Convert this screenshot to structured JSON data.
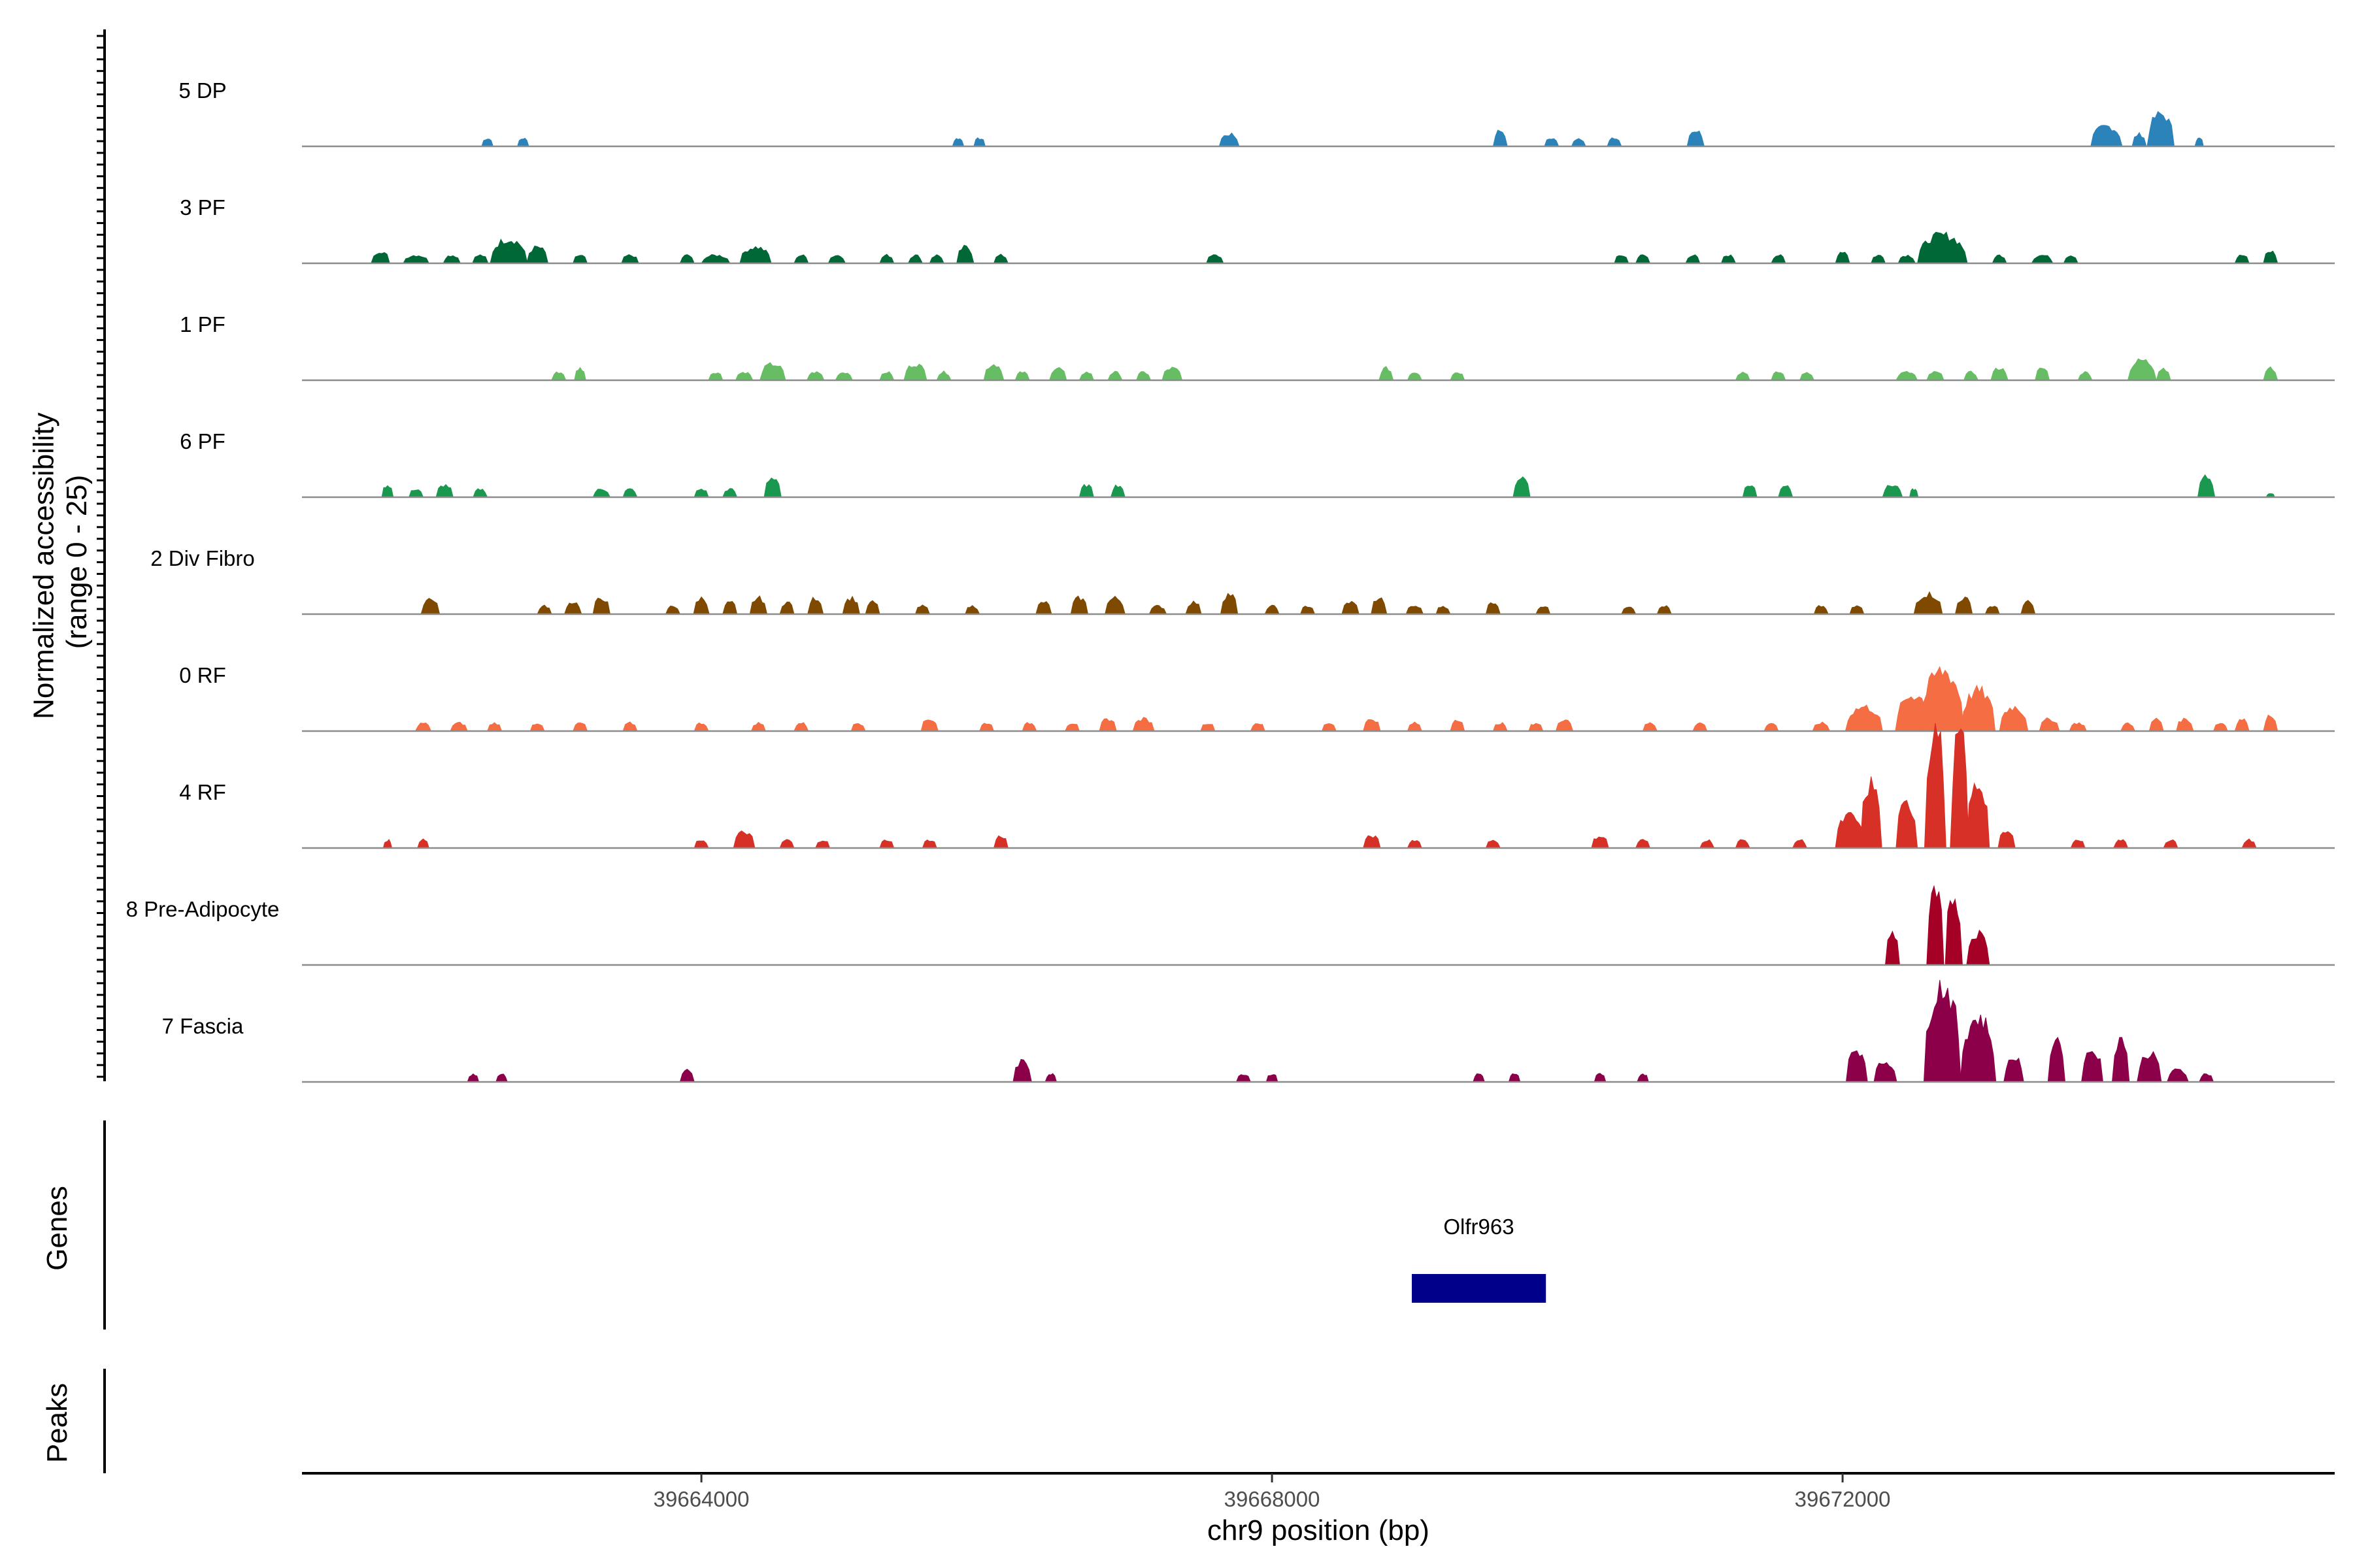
{
  "chart_data": {
    "type": "area",
    "subtype": "genome-coverage-tracks",
    "y_axis": {
      "title_line1": "Normalized accessibility",
      "title_line2": "(range 0 - 25)",
      "range": [
        0,
        25
      ]
    },
    "x_axis": {
      "title": "chr9 position (bp)",
      "range": [
        39661200,
        39675450
      ],
      "ticks": [
        39664000,
        39668000,
        39672000
      ],
      "tick_labels": [
        "39664000",
        "39668000",
        "39672000"
      ]
    },
    "panel_titles": {
      "genes": "Genes",
      "peaks": "Peaks"
    },
    "genes": [
      {
        "name": "Olfr963",
        "start": 39668980,
        "end": 39669920,
        "color": "#00008b"
      }
    ],
    "tracks": [
      {
        "name": "5 DP",
        "color": "#2b83ba",
        "peaks": [
          [
            39662500,
            80,
            2
          ],
          [
            39662750,
            80,
            2
          ],
          [
            39665800,
            80,
            2
          ],
          [
            39665950,
            80,
            2
          ],
          [
            39667700,
            140,
            3
          ],
          [
            39669600,
            100,
            4
          ],
          [
            39669960,
            100,
            2
          ],
          [
            39670150,
            100,
            2
          ],
          [
            39670400,
            100,
            2
          ],
          [
            39670970,
            120,
            4
          ],
          [
            39673850,
            220,
            5
          ],
          [
            39674080,
            100,
            3
          ],
          [
            39674230,
            190,
            8
          ],
          [
            39674500,
            60,
            2
          ]
        ]
      },
      {
        "name": "3 PF",
        "color": "#006837",
        "peaks": [
          [
            39661750,
            130,
            3
          ],
          [
            39662000,
            180,
            2
          ],
          [
            39662250,
            120,
            2
          ],
          [
            39662450,
            110,
            2
          ],
          [
            39662650,
            260,
            6
          ],
          [
            39662850,
            150,
            4
          ],
          [
            39663150,
            100,
            2
          ],
          [
            39663500,
            120,
            2
          ],
          [
            39663900,
            100,
            2
          ],
          [
            39664100,
            200,
            2
          ],
          [
            39664380,
            220,
            4
          ],
          [
            39664700,
            100,
            2
          ],
          [
            39664950,
            120,
            2
          ],
          [
            39665300,
            100,
            2
          ],
          [
            39665500,
            100,
            2
          ],
          [
            39665650,
            100,
            2
          ],
          [
            39665850,
            120,
            4
          ],
          [
            39666100,
            100,
            2
          ],
          [
            39667600,
            120,
            2
          ],
          [
            39670450,
            100,
            2
          ],
          [
            39670600,
            100,
            2
          ],
          [
            39670950,
            100,
            2
          ],
          [
            39671200,
            100,
            2
          ],
          [
            39671550,
            100,
            2
          ],
          [
            39672000,
            100,
            3
          ],
          [
            39672250,
            100,
            2
          ],
          [
            39672450,
            120,
            2
          ],
          [
            39672700,
            350,
            7
          ],
          [
            39673100,
            100,
            2
          ],
          [
            39673400,
            150,
            2
          ],
          [
            39673600,
            100,
            2
          ],
          [
            39674800,
            100,
            2
          ],
          [
            39675000,
            100,
            3
          ]
        ]
      },
      {
        "name": "1 PF",
        "color": "#66bd63",
        "peaks": [
          [
            39663000,
            100,
            2
          ],
          [
            39663150,
            80,
            3
          ],
          [
            39664100,
            100,
            2
          ],
          [
            39664300,
            120,
            2
          ],
          [
            39664500,
            180,
            4
          ],
          [
            39664800,
            120,
            2
          ],
          [
            39665000,
            120,
            2
          ],
          [
            39665300,
            100,
            2
          ],
          [
            39665500,
            160,
            4
          ],
          [
            39665700,
            100,
            2
          ],
          [
            39666050,
            140,
            4
          ],
          [
            39666250,
            100,
            2
          ],
          [
            39666500,
            120,
            3
          ],
          [
            39666700,
            100,
            2
          ],
          [
            39666900,
            100,
            2
          ],
          [
            39667100,
            100,
            2
          ],
          [
            39667300,
            140,
            3
          ],
          [
            39668800,
            100,
            3
          ],
          [
            39669000,
            100,
            2
          ],
          [
            39669300,
            100,
            2
          ],
          [
            39671300,
            100,
            2
          ],
          [
            39671550,
            100,
            2
          ],
          [
            39671750,
            100,
            2
          ],
          [
            39672450,
            150,
            2
          ],
          [
            39672650,
            120,
            2
          ],
          [
            39672900,
            100,
            2
          ],
          [
            39673100,
            120,
            3
          ],
          [
            39673400,
            100,
            3
          ],
          [
            39673700,
            100,
            2
          ],
          [
            39674100,
            200,
            5
          ],
          [
            39674250,
            100,
            3
          ],
          [
            39675000,
            100,
            3
          ]
        ]
      },
      {
        "name": "6 PF",
        "color": "#1a9850",
        "peaks": [
          [
            39661800,
            80,
            3
          ],
          [
            39662000,
            100,
            2
          ],
          [
            39662200,
            120,
            3
          ],
          [
            39662450,
            100,
            2
          ],
          [
            39663300,
            120,
            2
          ],
          [
            39663500,
            100,
            2
          ],
          [
            39664000,
            100,
            2
          ],
          [
            39664200,
            100,
            2
          ],
          [
            39664500,
            120,
            5
          ],
          [
            39666700,
            100,
            3
          ],
          [
            39666920,
            100,
            3
          ],
          [
            39669750,
            120,
            5
          ],
          [
            39671350,
            100,
            3
          ],
          [
            39671600,
            100,
            3
          ],
          [
            39672350,
            140,
            3
          ],
          [
            39672500,
            60,
            2
          ],
          [
            39674550,
            120,
            5
          ],
          [
            39675000,
            60,
            1
          ]
        ]
      },
      {
        "name": "2 Div Fibro",
        "color": "#7f4900",
        "peaks": [
          [
            39662100,
            130,
            4
          ],
          [
            39662900,
            100,
            2
          ],
          [
            39663100,
            120,
            3
          ],
          [
            39663300,
            120,
            4
          ],
          [
            39663800,
            100,
            2
          ],
          [
            39664000,
            110,
            4
          ],
          [
            39664200,
            100,
            3
          ],
          [
            39664400,
            120,
            4
          ],
          [
            39664600,
            100,
            3
          ],
          [
            39664800,
            110,
            4
          ],
          [
            39665050,
            120,
            4
          ],
          [
            39665200,
            100,
            3
          ],
          [
            39665550,
            100,
            2
          ],
          [
            39665900,
            100,
            2
          ],
          [
            39666400,
            110,
            3
          ],
          [
            39666650,
            120,
            4
          ],
          [
            39666900,
            140,
            4
          ],
          [
            39667200,
            120,
            2
          ],
          [
            39667450,
            110,
            3
          ],
          [
            39667700,
            120,
            5
          ],
          [
            39668000,
            100,
            2
          ],
          [
            39668250,
            100,
            2
          ],
          [
            39668550,
            120,
            3
          ],
          [
            39668750,
            110,
            4
          ],
          [
            39669000,
            120,
            2
          ],
          [
            39669200,
            100,
            2
          ],
          [
            39669550,
            100,
            3
          ],
          [
            39669900,
            100,
            2
          ],
          [
            39670500,
            100,
            2
          ],
          [
            39670750,
            100,
            2
          ],
          [
            39671850,
            100,
            2
          ],
          [
            39672100,
            100,
            2
          ],
          [
            39672600,
            200,
            5
          ],
          [
            39672850,
            120,
            4
          ],
          [
            39673050,
            100,
            2
          ],
          [
            39673300,
            100,
            3
          ]
        ]
      },
      {
        "name": "0 RF",
        "color": "#f46d43",
        "peaks": [
          [
            39662050,
            110,
            2
          ],
          [
            39662300,
            120,
            2
          ],
          [
            39662550,
            100,
            2
          ],
          [
            39662850,
            100,
            2
          ],
          [
            39663150,
            100,
            2
          ],
          [
            39663500,
            100,
            2
          ],
          [
            39664000,
            100,
            2
          ],
          [
            39664400,
            100,
            2
          ],
          [
            39664700,
            100,
            2
          ],
          [
            39665100,
            100,
            2
          ],
          [
            39665600,
            120,
            3
          ],
          [
            39666000,
            100,
            2
          ],
          [
            39666300,
            100,
            2
          ],
          [
            39666600,
            100,
            2
          ],
          [
            39666850,
            120,
            3
          ],
          [
            39667100,
            150,
            3
          ],
          [
            39667550,
            100,
            2
          ],
          [
            39667900,
            100,
            2
          ],
          [
            39668400,
            100,
            2
          ],
          [
            39668700,
            120,
            3
          ],
          [
            39669000,
            100,
            2
          ],
          [
            39669300,
            100,
            3
          ],
          [
            39669600,
            100,
            2
          ],
          [
            39669850,
            100,
            2
          ],
          [
            39670050,
            120,
            3
          ],
          [
            39670650,
            100,
            2
          ],
          [
            39671000,
            100,
            2
          ],
          [
            39671500,
            100,
            2
          ],
          [
            39671850,
            120,
            2
          ],
          [
            39672150,
            260,
            6
          ],
          [
            39672500,
            260,
            9
          ],
          [
            39672700,
            300,
            15
          ],
          [
            39672950,
            240,
            10
          ],
          [
            39673200,
            200,
            6
          ],
          [
            39673450,
            140,
            3
          ],
          [
            39673650,
            120,
            2
          ],
          [
            39674000,
            100,
            2
          ],
          [
            39674200,
            100,
            3
          ],
          [
            39674400,
            120,
            3
          ],
          [
            39674650,
            100,
            2
          ],
          [
            39674800,
            100,
            3
          ],
          [
            39675000,
            100,
            4
          ]
        ]
      },
      {
        "name": "4 RF",
        "color": "#d73027",
        "peaks": [
          [
            39661800,
            60,
            2
          ],
          [
            39662050,
            80,
            2
          ],
          [
            39664000,
            100,
            2
          ],
          [
            39664300,
            150,
            4
          ],
          [
            39664600,
            100,
            2
          ],
          [
            39664850,
            100,
            2
          ],
          [
            39665300,
            100,
            2
          ],
          [
            39665600,
            100,
            2
          ],
          [
            39666100,
            100,
            3
          ],
          [
            39668700,
            120,
            3
          ],
          [
            39669000,
            100,
            2
          ],
          [
            39669550,
            100,
            2
          ],
          [
            39670300,
            120,
            3
          ],
          [
            39670600,
            100,
            2
          ],
          [
            39671050,
            100,
            2
          ],
          [
            39671300,
            100,
            2
          ],
          [
            39671700,
            100,
            2
          ],
          [
            39672050,
            200,
            8
          ],
          [
            39672200,
            150,
            16
          ],
          [
            39672450,
            150,
            11
          ],
          [
            39672650,
            150,
            30
          ],
          [
            39672820,
            130,
            28
          ],
          [
            39672950,
            160,
            16
          ],
          [
            39673150,
            120,
            4
          ],
          [
            39673650,
            100,
            2
          ],
          [
            39673950,
            100,
            2
          ],
          [
            39674300,
            100,
            2
          ],
          [
            39674850,
            100,
            2
          ]
        ]
      },
      {
        "name": "8 Pre-Adipocyte",
        "color": "#a50026",
        "peaks": [
          [
            39672350,
            100,
            8
          ],
          [
            39672650,
            120,
            18
          ],
          [
            39672780,
            120,
            17
          ],
          [
            39672950,
            160,
            8
          ]
        ]
      },
      {
        "name": "7 Fascia",
        "color": "#8b0049",
        "peaks": [
          [
            39662400,
            80,
            2
          ],
          [
            39662600,
            80,
            2
          ],
          [
            39663900,
            100,
            3
          ],
          [
            39666250,
            130,
            5
          ],
          [
            39666450,
            80,
            2
          ],
          [
            39667800,
            100,
            2
          ],
          [
            39668000,
            80,
            2
          ],
          [
            39669450,
            80,
            2
          ],
          [
            39669700,
            80,
            2
          ],
          [
            39670300,
            80,
            2
          ],
          [
            39670600,
            80,
            2
          ],
          [
            39672100,
            150,
            8
          ],
          [
            39672300,
            160,
            5
          ],
          [
            39672700,
            260,
            24
          ],
          [
            39672950,
            250,
            16
          ],
          [
            39673200,
            140,
            6
          ],
          [
            39673500,
            120,
            11
          ],
          [
            39673750,
            150,
            8
          ],
          [
            39673950,
            120,
            11
          ],
          [
            39674150,
            170,
            7
          ],
          [
            39674350,
            150,
            3
          ],
          [
            39674550,
            100,
            2
          ]
        ]
      }
    ]
  }
}
